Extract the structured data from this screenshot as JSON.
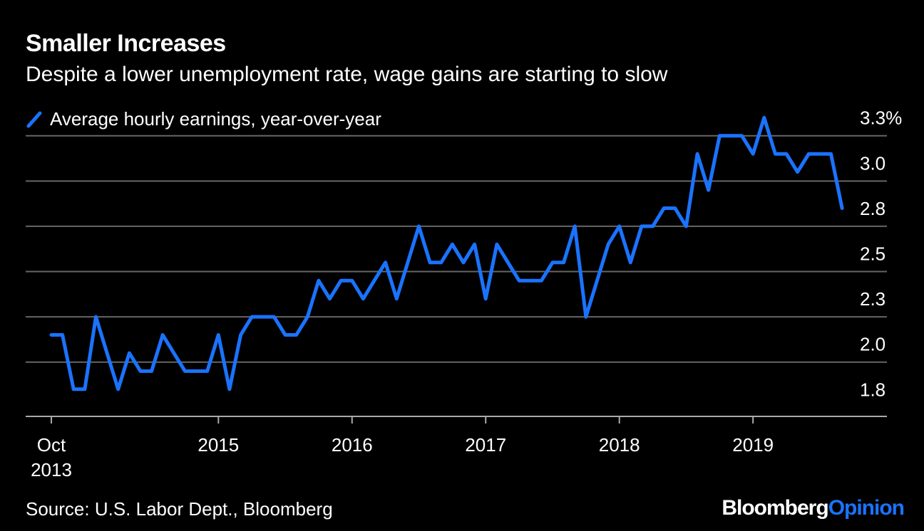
{
  "header": {
    "title": "Smaller Increases",
    "subtitle": "Despite a lower unemployment rate, wage gains are starting to slow"
  },
  "footer": {
    "source": "Source: U.S. Labor Dept., Bloomberg",
    "brand_main": "Bloomberg",
    "brand_accent": "Opinion"
  },
  "colors": {
    "background": "#000000",
    "line": "#1a73ff",
    "grid": "#666666",
    "text": "#ffffff"
  },
  "chart_data": {
    "type": "line",
    "title": "Smaller Increases",
    "subtitle": "Despite a lower unemployment rate, wage gains are starting to slow",
    "xlabel": "",
    "ylabel": "",
    "ylim": [
      1.7,
      3.3
    ],
    "xlim": [
      "2013-10",
      "2019-12"
    ],
    "grid": true,
    "legend": "top-left",
    "y_axis_side": "right",
    "y_ticks": [
      {
        "value": 1.75,
        "label": "1.8"
      },
      {
        "value": 2.0,
        "label": "2.0"
      },
      {
        "value": 2.25,
        "label": "2.3"
      },
      {
        "value": 2.5,
        "label": "2.5"
      },
      {
        "value": 2.75,
        "label": "2.8"
      },
      {
        "value": 3.0,
        "label": "3.0"
      },
      {
        "value": 3.25,
        "label": "3.3%"
      }
    ],
    "x_ticks": [
      {
        "value": "2013-10",
        "label": "Oct",
        "label2": "2013"
      },
      {
        "value": "2015-01",
        "label": "2015",
        "label2": ""
      },
      {
        "value": "2016-01",
        "label": "2016",
        "label2": ""
      },
      {
        "value": "2017-01",
        "label": "2017",
        "label2": ""
      },
      {
        "value": "2018-01",
        "label": "2018",
        "label2": ""
      },
      {
        "value": "2019-01",
        "label": "2019",
        "label2": ""
      }
    ],
    "series": [
      {
        "name": "Average hourly earnings, year-over-year",
        "x": [
          "2013-10",
          "2013-11",
          "2013-12",
          "2014-01",
          "2014-02",
          "2014-03",
          "2014-04",
          "2014-05",
          "2014-06",
          "2014-07",
          "2014-08",
          "2014-09",
          "2014-10",
          "2014-11",
          "2014-12",
          "2015-01",
          "2015-02",
          "2015-03",
          "2015-04",
          "2015-05",
          "2015-06",
          "2015-07",
          "2015-08",
          "2015-09",
          "2015-10",
          "2015-11",
          "2015-12",
          "2016-01",
          "2016-02",
          "2016-03",
          "2016-04",
          "2016-05",
          "2016-06",
          "2016-07",
          "2016-08",
          "2016-09",
          "2016-10",
          "2016-11",
          "2016-12",
          "2017-01",
          "2017-02",
          "2017-03",
          "2017-04",
          "2017-05",
          "2017-06",
          "2017-07",
          "2017-08",
          "2017-09",
          "2017-10",
          "2017-11",
          "2017-12",
          "2018-01",
          "2018-02",
          "2018-03",
          "2018-04",
          "2018-05",
          "2018-06",
          "2018-07",
          "2018-08",
          "2018-09",
          "2018-10",
          "2018-11",
          "2018-12",
          "2019-01",
          "2019-02",
          "2019-03",
          "2019-04",
          "2019-05",
          "2019-06",
          "2019-07",
          "2019-08",
          "2019-09"
        ],
        "values": [
          2.15,
          2.15,
          1.85,
          1.85,
          2.25,
          2.05,
          1.85,
          2.05,
          1.95,
          1.95,
          2.15,
          2.05,
          1.95,
          1.95,
          1.95,
          2.15,
          1.85,
          2.15,
          2.25,
          2.25,
          2.25,
          2.15,
          2.15,
          2.25,
          2.45,
          2.35,
          2.45,
          2.45,
          2.35,
          2.45,
          2.55,
          2.35,
          2.55,
          2.75,
          2.55,
          2.55,
          2.65,
          2.55,
          2.65,
          2.35,
          2.65,
          2.55,
          2.45,
          2.45,
          2.45,
          2.55,
          2.55,
          2.75,
          2.25,
          2.45,
          2.65,
          2.75,
          2.55,
          2.75,
          2.75,
          2.85,
          2.85,
          2.75,
          3.15,
          2.95,
          3.25,
          3.25,
          3.25,
          3.15,
          3.35,
          3.15,
          3.15,
          3.05,
          3.15,
          3.15,
          3.15,
          2.85
        ]
      }
    ]
  }
}
